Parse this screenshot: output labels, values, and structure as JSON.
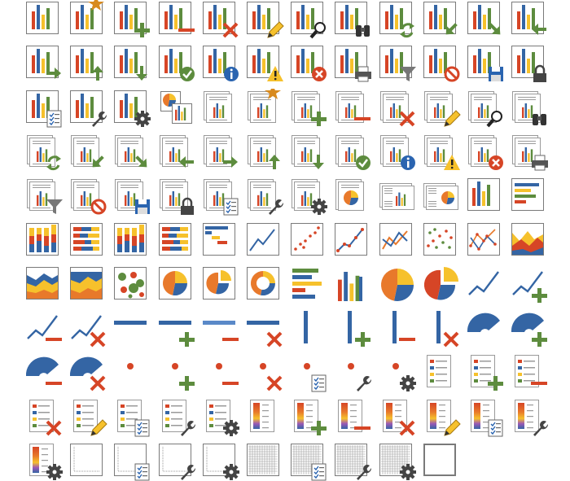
{
  "palette": {
    "red": "#d64526",
    "blue": "#3465a4",
    "green": "#5d8c3e",
    "yellow": "#f6c12c",
    "orange": "#e8792b",
    "frame": "#7a7a7a",
    "docline": "#9a9a9a",
    "black": "#333333",
    "star": "#d88a1e",
    "info": "#2a64b0",
    "printer": "#555555"
  },
  "icons": [
    {
      "name": "chart-icon",
      "base": "chart"
    },
    {
      "name": "new-chart-icon",
      "base": "chart",
      "badge": "star"
    },
    {
      "name": "add-chart-icon",
      "base": "chart",
      "badge": "plus"
    },
    {
      "name": "remove-chart-icon",
      "base": "chart",
      "badge": "minus"
    },
    {
      "name": "delete-chart-icon",
      "base": "chart",
      "badge": "x"
    },
    {
      "name": "edit-chart-icon",
      "base": "chart",
      "badge": "pencil"
    },
    {
      "name": "search-chart-icon",
      "base": "chart",
      "badge": "magnifier"
    },
    {
      "name": "find-chart-icon",
      "base": "chart",
      "badge": "binoculars"
    },
    {
      "name": "refresh-chart-icon",
      "base": "chart",
      "badge": "refresh"
    },
    {
      "name": "chart-arrow-down-left-icon",
      "base": "chart",
      "badge": "arrow-sw"
    },
    {
      "name": "chart-arrow-down-right-icon",
      "base": "chart",
      "badge": "arrow-se"
    },
    {
      "name": "chart-arrow-left-icon",
      "base": "chart",
      "badge": "arrow-w"
    },
    {
      "name": "chart-arrow-right-icon",
      "base": "chart",
      "badge": "arrow-e"
    },
    {
      "name": "chart-arrow-up-icon",
      "base": "chart",
      "badge": "arrow-n"
    },
    {
      "name": "chart-arrow-down-icon",
      "base": "chart",
      "badge": "arrow-s"
    },
    {
      "name": "chart-ok-icon",
      "base": "chart",
      "badge": "check"
    },
    {
      "name": "chart-info-icon",
      "base": "chart",
      "badge": "info"
    },
    {
      "name": "chart-warning-icon",
      "base": "chart",
      "badge": "warn"
    },
    {
      "name": "chart-error-icon",
      "base": "chart",
      "badge": "error"
    },
    {
      "name": "print-chart-icon",
      "base": "chart",
      "badge": "printer"
    },
    {
      "name": "filter-chart-icon",
      "base": "chart",
      "badge": "funnel"
    },
    {
      "name": "chart-blocked-icon",
      "base": "chart",
      "badge": "ban"
    },
    {
      "name": "save-chart-icon",
      "base": "chart",
      "badge": "disk"
    },
    {
      "name": "lock-chart-icon",
      "base": "chart",
      "badge": "lock"
    },
    {
      "name": "chart-properties-icon",
      "base": "chart",
      "badge": "checklist"
    },
    {
      "name": "chart-tools-icon",
      "base": "chart",
      "badge": "wrench"
    },
    {
      "name": "chart-settings-icon",
      "base": "chart",
      "badge": "gear"
    },
    {
      "name": "charts-icon",
      "base": "pie-bar-pair"
    },
    {
      "name": "chart-report-icon",
      "base": "doc"
    },
    {
      "name": "new-chart-report-icon",
      "base": "doc",
      "badge": "star"
    },
    {
      "name": "add-chart-report-icon",
      "base": "doc",
      "badge": "plus"
    },
    {
      "name": "remove-chart-report-icon",
      "base": "doc",
      "badge": "minus"
    },
    {
      "name": "delete-chart-report-icon",
      "base": "doc",
      "badge": "x"
    },
    {
      "name": "edit-chart-report-icon",
      "base": "doc",
      "badge": "pencil"
    },
    {
      "name": "search-chart-report-icon",
      "base": "doc",
      "badge": "magnifier"
    },
    {
      "name": "find-chart-report-icon",
      "base": "doc",
      "badge": "binoculars"
    },
    {
      "name": "refresh-chart-report-icon",
      "base": "doc",
      "badge": "refresh"
    },
    {
      "name": "chart-report-arrow-down-left-icon",
      "base": "doc",
      "badge": "arrow-sw"
    },
    {
      "name": "chart-report-arrow-down-right-icon",
      "base": "doc",
      "badge": "arrow-se"
    },
    {
      "name": "chart-report-arrow-left-icon",
      "base": "doc",
      "badge": "arrow-w"
    },
    {
      "name": "chart-report-arrow-right-icon",
      "base": "doc",
      "badge": "arrow-e"
    },
    {
      "name": "chart-report-arrow-up-icon",
      "base": "doc",
      "badge": "arrow-n"
    },
    {
      "name": "chart-report-arrow-down-icon",
      "base": "doc",
      "badge": "arrow-s"
    },
    {
      "name": "chart-report-ok-icon",
      "base": "doc",
      "badge": "check"
    },
    {
      "name": "chart-report-info-icon",
      "base": "doc",
      "badge": "info"
    },
    {
      "name": "chart-report-warning-icon",
      "base": "doc",
      "badge": "warn"
    },
    {
      "name": "chart-report-error-icon",
      "base": "doc",
      "badge": "error"
    },
    {
      "name": "print-chart-report-icon",
      "base": "doc",
      "badge": "printer"
    },
    {
      "name": "filter-chart-report-icon",
      "base": "doc",
      "badge": "funnel"
    },
    {
      "name": "chart-report-blocked-icon",
      "base": "doc",
      "badge": "ban"
    },
    {
      "name": "save-chart-report-icon",
      "base": "doc",
      "badge": "disk"
    },
    {
      "name": "lock-chart-report-icon",
      "base": "doc",
      "badge": "lock"
    },
    {
      "name": "chart-report-properties-icon",
      "base": "doc",
      "badge": "checklist"
    },
    {
      "name": "chart-report-tools-icon",
      "base": "doc",
      "badge": "wrench"
    },
    {
      "name": "chart-report-settings-icon",
      "base": "doc",
      "badge": "gear"
    },
    {
      "name": "pie-report-icon",
      "base": "doc-pie"
    },
    {
      "name": "landscape-chart-report-icon",
      "base": "landscape-bar"
    },
    {
      "name": "landscape-pie-report-icon",
      "base": "landscape-pie"
    },
    {
      "name": "column-chart-icon",
      "base": "chart-plain"
    },
    {
      "name": "bar-chart-icon",
      "base": "hbar"
    },
    {
      "name": "stacked-column-chart-icon",
      "base": "stacked-col"
    },
    {
      "name": "stacked-bar-chart-icon",
      "base": "stacked-bar"
    },
    {
      "name": "stacked-column-100-chart-icon",
      "base": "stacked-col"
    },
    {
      "name": "stacked-bar-100-chart-icon",
      "base": "stacked-bar"
    },
    {
      "name": "gantt-chart-icon",
      "base": "gantt"
    },
    {
      "name": "line-chart-icon",
      "base": "line"
    },
    {
      "name": "scatter-chart-icon",
      "base": "scatter"
    },
    {
      "name": "line-markers-chart-icon",
      "base": "line-markers"
    },
    {
      "name": "multi-line-chart-icon",
      "base": "multi-line"
    },
    {
      "name": "multi-scatter-chart-icon",
      "base": "multi-scatter"
    },
    {
      "name": "multi-line-markers-chart-icon",
      "base": "multi-line-markers"
    },
    {
      "name": "area-chart-icon",
      "base": "area"
    },
    {
      "name": "stacked-area-chart-icon",
      "base": "stacked-area"
    },
    {
      "name": "stacked-area-100-chart-icon",
      "base": "stacked-area2"
    },
    {
      "name": "bubble-chart-icon",
      "base": "bubble"
    },
    {
      "name": "pie-chart-icon",
      "base": "pie"
    },
    {
      "name": "exploded-pie-chart-icon",
      "base": "pie-explode"
    },
    {
      "name": "doughnut-chart-icon",
      "base": "donut"
    },
    {
      "name": "bar-chart-large-icon",
      "base": "hbar-large"
    },
    {
      "name": "column-chart-large-icon",
      "base": "col-large"
    },
    {
      "name": "pie-chart-large-icon",
      "base": "pie-large"
    },
    {
      "name": "exploded-pie-chart-large-icon",
      "base": "pie-explode-large"
    },
    {
      "name": "trend-line-icon",
      "base": "trend"
    },
    {
      "name": "add-trend-line-icon",
      "base": "trend",
      "badge": "plus"
    },
    {
      "name": "remove-trend-line-icon",
      "base": "trend",
      "badge": "minus"
    },
    {
      "name": "delete-trend-line-icon",
      "base": "trend",
      "badge": "x"
    },
    {
      "name": "horizontal-line-icon",
      "base": "hline"
    },
    {
      "name": "add-horizontal-line-icon",
      "base": "hline",
      "badge": "plus"
    },
    {
      "name": "remove-horizontal-line-icon",
      "base": "hline-light",
      "badge": "minus"
    },
    {
      "name": "delete-horizontal-line-icon",
      "base": "hline",
      "badge": "x"
    },
    {
      "name": "vertical-line-icon",
      "base": "vline"
    },
    {
      "name": "add-vertical-line-icon",
      "base": "vline",
      "badge": "plus"
    },
    {
      "name": "remove-vertical-line-icon",
      "base": "vline",
      "badge": "minus"
    },
    {
      "name": "delete-vertical-line-icon",
      "base": "vline",
      "badge": "x"
    },
    {
      "name": "gauge-icon",
      "base": "gauge"
    },
    {
      "name": "add-gauge-icon",
      "base": "gauge",
      "badge": "plus"
    },
    {
      "name": "remove-gauge-icon",
      "base": "gauge",
      "badge": "minus"
    },
    {
      "name": "delete-gauge-icon",
      "base": "gauge",
      "badge": "x"
    },
    {
      "name": "data-point-icon",
      "base": "dot"
    },
    {
      "name": "add-data-point-icon",
      "base": "dot",
      "badge": "plus"
    },
    {
      "name": "remove-data-point-icon",
      "base": "dot",
      "badge": "minus"
    },
    {
      "name": "delete-data-point-icon",
      "base": "dot",
      "badge": "x"
    },
    {
      "name": "data-point-properties-icon",
      "base": "dot",
      "badge": "checklist"
    },
    {
      "name": "data-point-tools-icon",
      "base": "dot",
      "badge": "wrench"
    },
    {
      "name": "data-point-settings-icon",
      "base": "dot",
      "badge": "gear"
    },
    {
      "name": "legend-icon",
      "base": "legend"
    },
    {
      "name": "add-legend-icon",
      "base": "legend",
      "badge": "plus"
    },
    {
      "name": "remove-legend-icon",
      "base": "legend",
      "badge": "minus"
    },
    {
      "name": "delete-legend-icon",
      "base": "legend",
      "badge": "x"
    },
    {
      "name": "edit-legend-icon",
      "base": "legend",
      "badge": "pencil"
    },
    {
      "name": "legend-properties-icon",
      "base": "legend",
      "badge": "checklist"
    },
    {
      "name": "legend-tools-icon",
      "base": "legend",
      "badge": "wrench"
    },
    {
      "name": "legend-settings-icon",
      "base": "legend",
      "badge": "gear"
    },
    {
      "name": "color-scale-icon",
      "base": "colorscale"
    },
    {
      "name": "add-color-scale-icon",
      "base": "colorscale",
      "badge": "plus"
    },
    {
      "name": "remove-color-scale-icon",
      "base": "colorscale",
      "badge": "minus"
    },
    {
      "name": "delete-color-scale-icon",
      "base": "colorscale",
      "badge": "x"
    },
    {
      "name": "edit-color-scale-icon",
      "base": "colorscale",
      "badge": "pencil"
    },
    {
      "name": "color-scale-properties-icon",
      "base": "colorscale",
      "badge": "checklist"
    },
    {
      "name": "color-scale-tools-icon",
      "base": "colorscale",
      "badge": "wrench"
    },
    {
      "name": "color-scale-settings-icon",
      "base": "colorscale",
      "badge": "gear"
    },
    {
      "name": "plot-area-icon",
      "base": "plotarea"
    },
    {
      "name": "plot-area-properties-icon",
      "base": "plotarea",
      "badge": "checklist"
    },
    {
      "name": "plot-area-tools-icon",
      "base": "plotarea",
      "badge": "wrench"
    },
    {
      "name": "plot-area-settings-icon",
      "base": "plotarea",
      "badge": "gear"
    },
    {
      "name": "gridlines-icon",
      "base": "grid"
    },
    {
      "name": "gridlines-properties-icon",
      "base": "grid",
      "badge": "checklist"
    },
    {
      "name": "gridlines-tools-icon",
      "base": "grid",
      "badge": "wrench"
    },
    {
      "name": "gridlines-settings-icon",
      "base": "grid",
      "badge": "gear"
    },
    {
      "name": "chart-frame-icon",
      "base": "frame"
    }
  ]
}
